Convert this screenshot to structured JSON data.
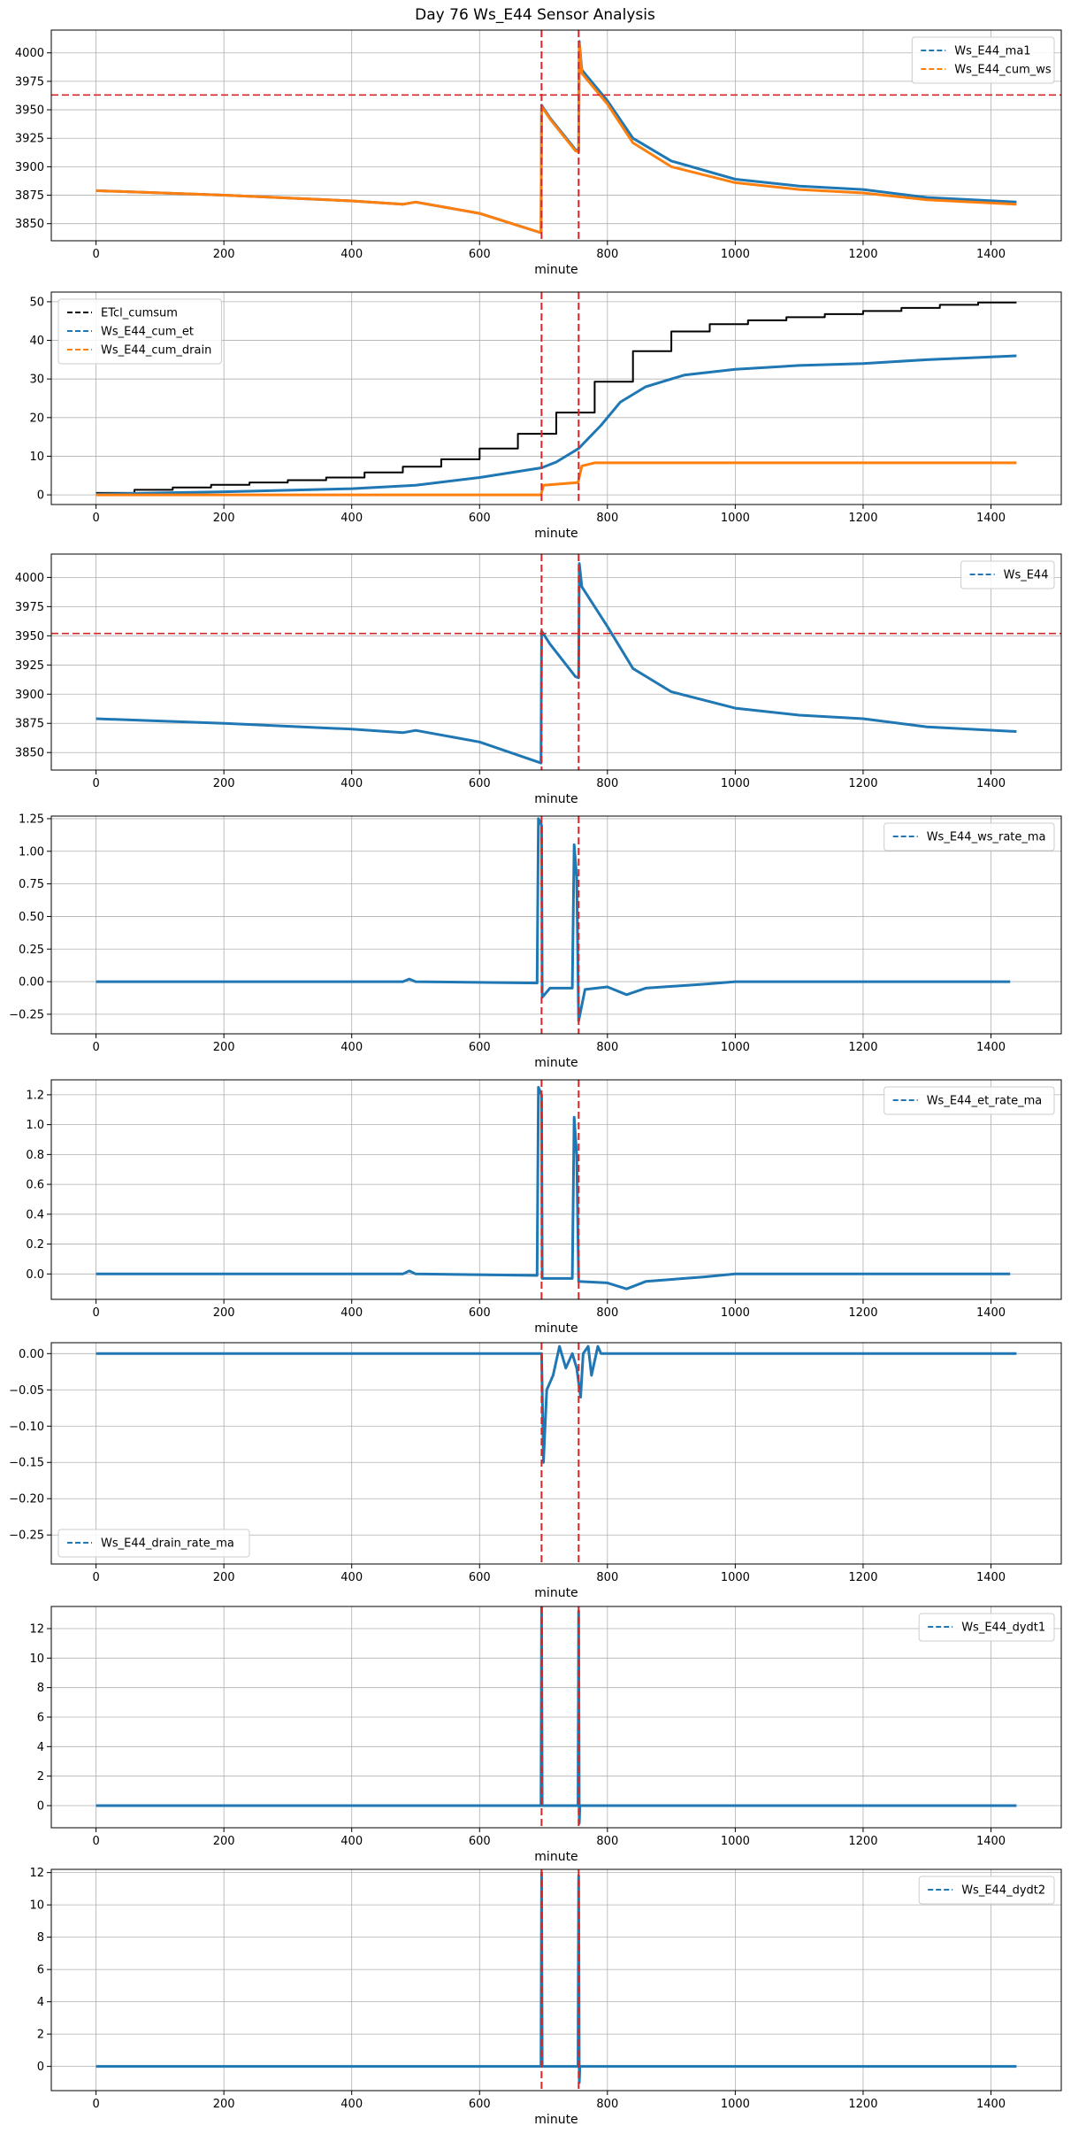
{
  "figure_title": "Day 76 Ws_E44 Sensor Analysis",
  "colors": {
    "blue": "#1f77b4",
    "orange": "#ff7f0e",
    "black": "#000000",
    "red": "#d62728",
    "grid": "#b0b0b0"
  },
  "chart_data": [
    {
      "type": "line",
      "xlabel": "minute",
      "xlim": [
        -70,
        1510
      ],
      "ylim": [
        3835,
        4020
      ],
      "xticks": [
        0,
        200,
        400,
        600,
        800,
        1000,
        1200,
        1400
      ],
      "yticks": [
        3850,
        3875,
        3900,
        3925,
        3950,
        3975,
        4000
      ],
      "grid": true,
      "vlines": [
        697,
        755
      ],
      "hlines": [
        3963
      ],
      "legend_position": "upper right",
      "series": [
        {
          "name": "Ws_E44_ma1",
          "color": "blue",
          "points": [
            [
              0,
              3879
            ],
            [
              200,
              3875
            ],
            [
              400,
              3870
            ],
            [
              480,
              3867
            ],
            [
              500,
              3869
            ],
            [
              600,
              3859
            ],
            [
              696,
              3842
            ],
            [
              697,
              3954
            ],
            [
              710,
              3943
            ],
            [
              750,
              3915
            ],
            [
              755,
              3914
            ],
            [
              756,
              4010
            ],
            [
              760,
              3985
            ],
            [
              800,
              3958
            ],
            [
              840,
              3925
            ],
            [
              900,
              3905
            ],
            [
              1000,
              3889
            ],
            [
              1100,
              3883
            ],
            [
              1200,
              3880
            ],
            [
              1300,
              3873
            ],
            [
              1440,
              3869
            ]
          ]
        },
        {
          "name": "Ws_E44_cum_ws",
          "color": "orange",
          "points": [
            [
              0,
              3879
            ],
            [
              200,
              3875
            ],
            [
              400,
              3870
            ],
            [
              480,
              3867
            ],
            [
              500,
              3869
            ],
            [
              600,
              3859
            ],
            [
              696,
              3842
            ],
            [
              697,
              3953
            ],
            [
              710,
              3942
            ],
            [
              750,
              3914
            ],
            [
              755,
              3913
            ],
            [
              756,
              4008
            ],
            [
              760,
              3982
            ],
            [
              800,
              3955
            ],
            [
              840,
              3921
            ],
            [
              900,
              3900
            ],
            [
              1000,
              3886
            ],
            [
              1100,
              3880
            ],
            [
              1200,
              3877
            ],
            [
              1300,
              3871
            ],
            [
              1440,
              3867
            ]
          ]
        }
      ]
    },
    {
      "type": "line",
      "xlabel": "minute",
      "xlim": [
        -70,
        1510
      ],
      "ylim": [
        -2.5,
        52.5
      ],
      "xticks": [
        0,
        200,
        400,
        600,
        800,
        1000,
        1200,
        1400
      ],
      "yticks": [
        0,
        10,
        20,
        30,
        40,
        50
      ],
      "grid": true,
      "vlines": [
        697,
        755
      ],
      "hlines": [],
      "legend_position": "upper left",
      "series": [
        {
          "name": "ETcl_cumsum",
          "color": "black",
          "step": true,
          "points": [
            [
              0,
              0.5
            ],
            [
              60,
              1.3
            ],
            [
              120,
              1.9
            ],
            [
              180,
              2.6
            ],
            [
              240,
              3.2
            ],
            [
              300,
              3.8
            ],
            [
              360,
              4.5
            ],
            [
              420,
              5.8
            ],
            [
              480,
              7.3
            ],
            [
              540,
              9.2
            ],
            [
              600,
              12.0
            ],
            [
              660,
              15.8
            ],
            [
              720,
              21.3
            ],
            [
              780,
              29.3
            ],
            [
              840,
              37.2
            ],
            [
              900,
              42.3
            ],
            [
              960,
              44.2
            ],
            [
              1020,
              45.2
            ],
            [
              1080,
              46.0
            ],
            [
              1140,
              46.8
            ],
            [
              1200,
              47.6
            ],
            [
              1260,
              48.4
            ],
            [
              1320,
              49.2
            ],
            [
              1380,
              49.8
            ],
            [
              1440,
              49.8
            ]
          ]
        },
        {
          "name": "Ws_E44_cum_et",
          "color": "blue",
          "step": false,
          "points": [
            [
              0,
              0.2
            ],
            [
              200,
              0.8
            ],
            [
              400,
              1.6
            ],
            [
              500,
              2.5
            ],
            [
              600,
              4.5
            ],
            [
              697,
              7.0
            ],
            [
              720,
              8.5
            ],
            [
              755,
              12.0
            ],
            [
              790,
              18.0
            ],
            [
              820,
              24.0
            ],
            [
              860,
              28.0
            ],
            [
              920,
              31.0
            ],
            [
              1000,
              32.5
            ],
            [
              1100,
              33.5
            ],
            [
              1200,
              34.0
            ],
            [
              1300,
              35.0
            ],
            [
              1440,
              36.0
            ]
          ]
        },
        {
          "name": "Ws_E44_cum_drain",
          "color": "orange",
          "step": false,
          "points": [
            [
              0,
              0
            ],
            [
              696,
              0
            ],
            [
              700,
              2.5
            ],
            [
              754,
              3.2
            ],
            [
              760,
              7.5
            ],
            [
              780,
              8.3
            ],
            [
              1440,
              8.3
            ]
          ]
        }
      ]
    },
    {
      "type": "line",
      "xlabel": "minute",
      "xlim": [
        -70,
        1510
      ],
      "ylim": [
        3835,
        4020
      ],
      "xticks": [
        0,
        200,
        400,
        600,
        800,
        1000,
        1200,
        1400
      ],
      "yticks": [
        3850,
        3875,
        3900,
        3925,
        3950,
        3975,
        4000
      ],
      "grid": true,
      "vlines": [
        697,
        755
      ],
      "hlines": [
        3952
      ],
      "legend_position": "upper right",
      "series": [
        {
          "name": "Ws_E44",
          "color": "blue",
          "points": [
            [
              0,
              3879
            ],
            [
              200,
              3875
            ],
            [
              400,
              3870
            ],
            [
              480,
              3867
            ],
            [
              500,
              3869
            ],
            [
              600,
              3859
            ],
            [
              696,
              3841
            ],
            [
              697,
              3954
            ],
            [
              710,
              3943
            ],
            [
              750,
              3915
            ],
            [
              755,
              3914
            ],
            [
              756,
              4012
            ],
            [
              760,
              3992
            ],
            [
              800,
              3958
            ],
            [
              840,
              3922
            ],
            [
              900,
              3902
            ],
            [
              1000,
              3888
            ],
            [
              1100,
              3882
            ],
            [
              1200,
              3879
            ],
            [
              1300,
              3872
            ],
            [
              1440,
              3868
            ]
          ]
        }
      ]
    },
    {
      "type": "line",
      "xlabel": "minute",
      "xlim": [
        -70,
        1510
      ],
      "ylim": [
        -0.4,
        1.27
      ],
      "xticks": [
        0,
        200,
        400,
        600,
        800,
        1000,
        1200,
        1400
      ],
      "yticks": [
        -0.25,
        0,
        0.25,
        0.5,
        0.75,
        1.0,
        1.25
      ],
      "grid": true,
      "vlines": [
        697,
        755
      ],
      "hlines": [],
      "legend_position": "upper right",
      "series": [
        {
          "name": "Ws_E44_ws_rate_ma",
          "color": "blue",
          "points": [
            [
              0,
              0
            ],
            [
              480,
              0
            ],
            [
              490,
              0.02
            ],
            [
              500,
              0
            ],
            [
              690,
              -0.01
            ],
            [
              692,
              1.25
            ],
            [
              697,
              1.2
            ],
            [
              698,
              -0.12
            ],
            [
              710,
              -0.05
            ],
            [
              745,
              -0.05
            ],
            [
              748,
              1.05
            ],
            [
              752,
              0.8
            ],
            [
              755,
              -0.3
            ],
            [
              765,
              -0.06
            ],
            [
              800,
              -0.04
            ],
            [
              830,
              -0.1
            ],
            [
              860,
              -0.05
            ],
            [
              950,
              -0.02
            ],
            [
              1000,
              0
            ],
            [
              1430,
              0
            ]
          ]
        }
      ]
    },
    {
      "type": "line",
      "xlabel": "minute",
      "xlim": [
        -70,
        1510
      ],
      "ylim": [
        -0.17,
        1.3
      ],
      "xticks": [
        0,
        200,
        400,
        600,
        800,
        1000,
        1200,
        1400
      ],
      "yticks": [
        0,
        0.2,
        0.4,
        0.6,
        0.8,
        1.0,
        1.2
      ],
      "grid": true,
      "vlines": [
        697,
        755
      ],
      "hlines": [],
      "legend_position": "upper right",
      "series": [
        {
          "name": "Ws_E44_et_rate_ma",
          "color": "blue",
          "points": [
            [
              0,
              0
            ],
            [
              480,
              0
            ],
            [
              490,
              0.02
            ],
            [
              500,
              0
            ],
            [
              690,
              -0.01
            ],
            [
              692,
              1.25
            ],
            [
              697,
              1.2
            ],
            [
              698,
              -0.03
            ],
            [
              745,
              -0.03
            ],
            [
              748,
              1.05
            ],
            [
              752,
              0.8
            ],
            [
              755,
              -0.05
            ],
            [
              800,
              -0.06
            ],
            [
              830,
              -0.1
            ],
            [
              860,
              -0.05
            ],
            [
              950,
              -0.02
            ],
            [
              1000,
              0
            ],
            [
              1430,
              0
            ]
          ]
        }
      ]
    },
    {
      "type": "line",
      "xlabel": "minute",
      "xlim": [
        -70,
        1510
      ],
      "ylim": [
        -0.29,
        0.015
      ],
      "xticks": [
        0,
        200,
        400,
        600,
        800,
        1000,
        1200,
        1400
      ],
      "yticks": [
        -0.25,
        -0.2,
        -0.15,
        -0.1,
        -0.05,
        0
      ],
      "grid": true,
      "vlines": [
        697,
        755
      ],
      "hlines": [],
      "legend_position": "lower left",
      "series": [
        {
          "name": "Ws_E44_drain_rate_ma",
          "color": "blue",
          "points": [
            [
              0,
              0
            ],
            [
              697,
              0
            ],
            [
              700,
              -0.15
            ],
            [
              705,
              -0.05
            ],
            [
              715,
              -0.03
            ],
            [
              725,
              0.01
            ],
            [
              735,
              -0.02
            ],
            [
              745,
              0
            ],
            [
              752,
              -0.02
            ],
            [
              758,
              -0.06
            ],
            [
              762,
              0
            ],
            [
              770,
              0.01
            ],
            [
              775,
              -0.03
            ],
            [
              785,
              0.01
            ],
            [
              790,
              0
            ],
            [
              1440,
              0
            ]
          ]
        }
      ]
    },
    {
      "type": "line",
      "xlabel": "minute",
      "xlim": [
        -70,
        1510
      ],
      "ylim": [
        -1.5,
        13.5
      ],
      "xticks": [
        0,
        200,
        400,
        600,
        800,
        1000,
        1200,
        1400
      ],
      "yticks": [
        0,
        2,
        4,
        6,
        8,
        10,
        12
      ],
      "grid": true,
      "vlines": [
        697,
        755
      ],
      "hlines": [],
      "legend_position": "upper right",
      "series": [
        {
          "name": "Ws_E44_dydt1",
          "color": "blue",
          "points": [
            [
              0,
              0
            ],
            [
              696,
              0
            ],
            [
              697,
              13.5
            ],
            [
              698,
              0
            ],
            [
              754,
              0
            ],
            [
              755,
              13.2
            ],
            [
              756,
              -1.2
            ],
            [
              757,
              0
            ],
            [
              1440,
              0
            ]
          ]
        }
      ]
    },
    {
      "type": "line",
      "xlabel": "minute",
      "xlim": [
        -70,
        1510
      ],
      "ylim": [
        -1.5,
        12.2
      ],
      "xticks": [
        0,
        200,
        400,
        600,
        800,
        1000,
        1200,
        1400
      ],
      "yticks": [
        0,
        2,
        4,
        6,
        8,
        10,
        12
      ],
      "grid": true,
      "vlines": [
        697,
        755
      ],
      "hlines": [],
      "legend_position": "upper right",
      "series": [
        {
          "name": "Ws_E44_dydt2",
          "color": "blue",
          "points": [
            [
              0,
              0
            ],
            [
              696,
              0
            ],
            [
              697,
              12.0
            ],
            [
              698,
              0
            ],
            [
              754,
              0
            ],
            [
              755,
              11.8
            ],
            [
              756,
              -1.0
            ],
            [
              757,
              0
            ],
            [
              1440,
              0
            ]
          ]
        }
      ]
    }
  ]
}
